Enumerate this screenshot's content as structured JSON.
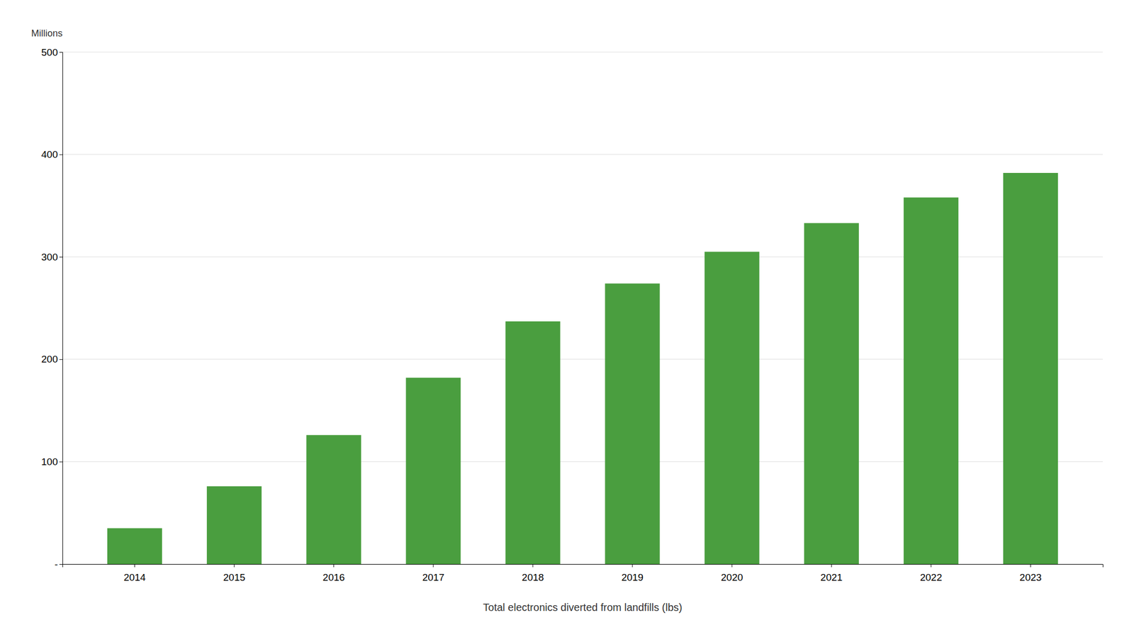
{
  "chart_data": {
    "type": "bar",
    "categories": [
      "2014",
      "2015",
      "2016",
      "2017",
      "2018",
      "2019",
      "2020",
      "2021",
      "2022",
      "2023"
    ],
    "values": [
      35,
      76,
      126,
      182,
      237,
      274,
      305,
      333,
      358,
      382
    ],
    "color": "#4a9e3f",
    "xlabel": "Total electronics diverted from landfills (lbs)",
    "ylabel": "Millions",
    "ylim": [
      0,
      500
    ],
    "yticks": [
      {
        "value": 0,
        "label": "-"
      },
      100,
      200,
      300,
      400,
      500
    ],
    "grid": true
  }
}
